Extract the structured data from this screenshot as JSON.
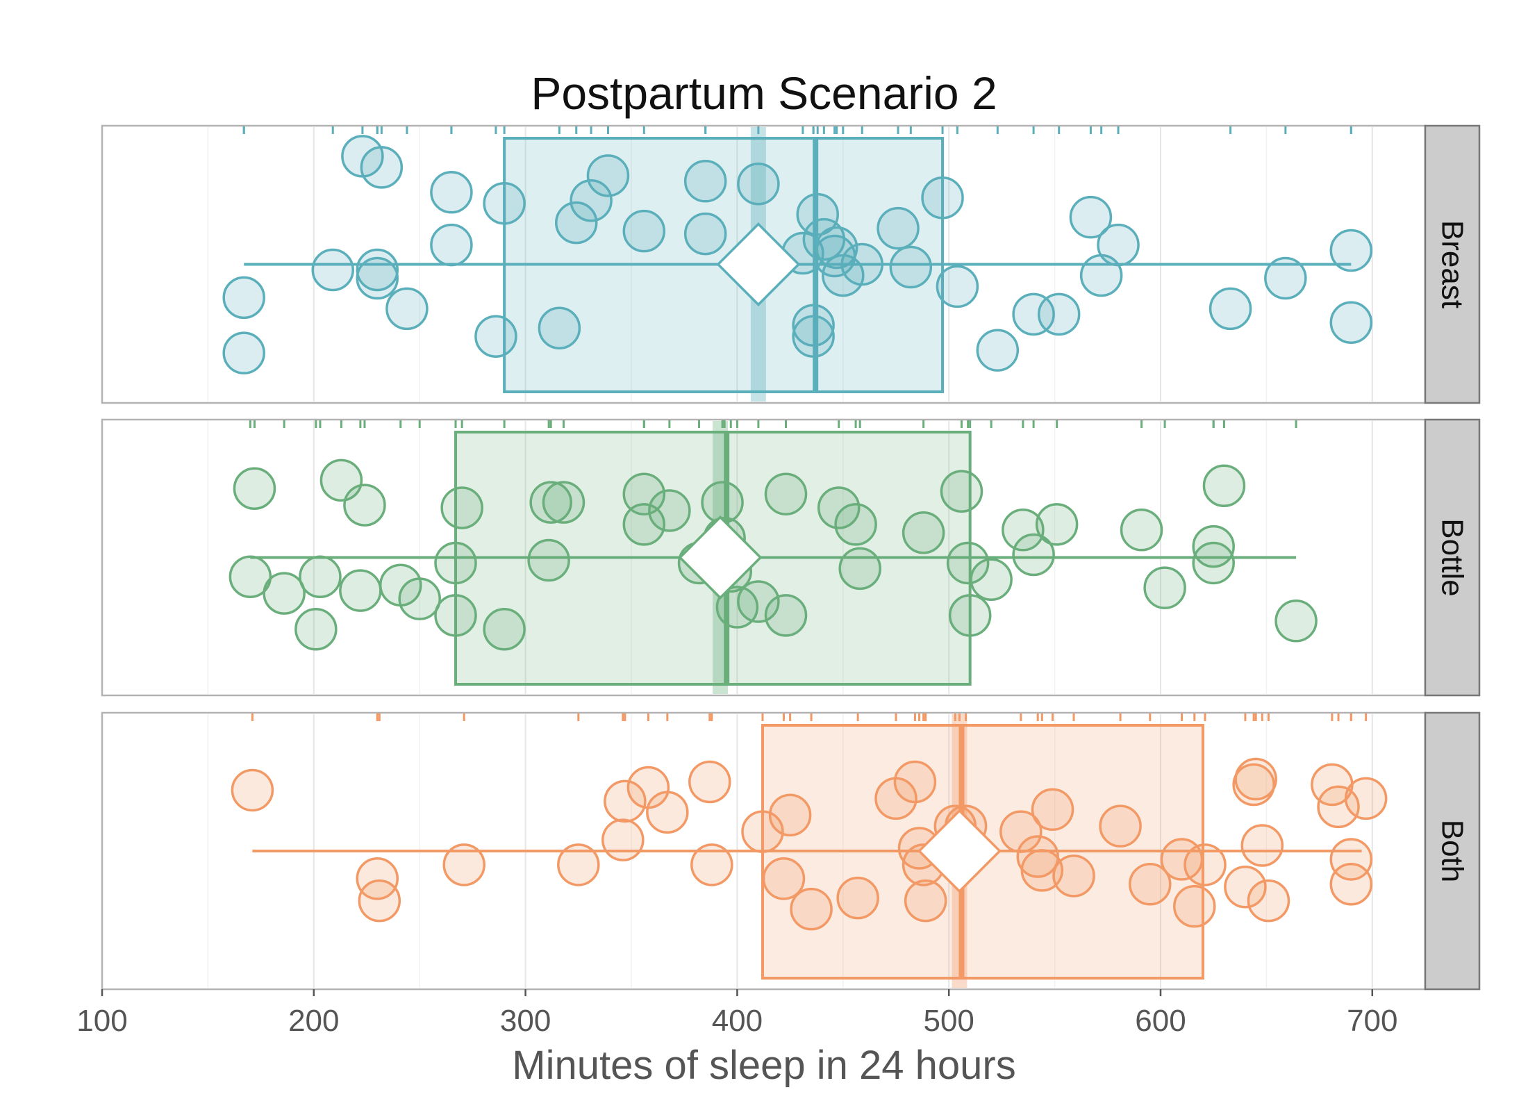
{
  "chart_data": {
    "type": "scatter",
    "title": "Postpartum Scenario 2",
    "xlabel": "Minutes of sleep in 24 hours",
    "ylabel": "",
    "xlim": [
      100,
      725
    ],
    "xticks": [
      100,
      200,
      300,
      400,
      500,
      600,
      700
    ],
    "xtick_labels": [
      "100",
      "200",
      "300",
      "400",
      "500",
      "600",
      "700"
    ],
    "grid": true,
    "layout": "three stacked facet panels with strip labels on the right",
    "elements": "jittered points, box (quartiles), median line, mean diamond, whisker line, rug ticks along top edge",
    "series": [
      {
        "name": "Breast",
        "color": "#5AAFBB",
        "box": {
          "q1": 290,
          "median": 437,
          "q3": 497,
          "whisker_low": 167,
          "whisker_high": 690,
          "mean": 410
        },
        "values": [
          167,
          167,
          209,
          223,
          230,
          230,
          232,
          244,
          265,
          265,
          286,
          290,
          316,
          324,
          331,
          339,
          356,
          385,
          385,
          410,
          431,
          436,
          436,
          438,
          441,
          446,
          447,
          450,
          459,
          476,
          482,
          497,
          504,
          523,
          540,
          552,
          567,
          572,
          580,
          633,
          659,
          690,
          690
        ],
        "jitter": [
          0.18,
          0.38,
          0.48,
          0.89,
          0.48,
          0.45,
          0.85,
          0.34,
          0.57,
          0.76,
          0.24,
          0.72,
          0.27,
          0.65,
          0.73,
          0.82,
          0.62,
          0.61,
          0.8,
          0.79,
          0.54,
          0.28,
          0.24,
          0.68,
          0.59,
          0.53,
          0.56,
          0.46,
          0.5,
          0.63,
          0.49,
          0.74,
          0.42,
          0.19,
          0.32,
          0.32,
          0.67,
          0.46,
          0.57,
          0.34,
          0.45,
          0.55,
          0.29
        ]
      },
      {
        "name": "Bottle",
        "color": "#6AAE7C",
        "box": {
          "q1": 267,
          "median": 395,
          "q3": 510,
          "whisker_low": 170,
          "whisker_high": 664,
          "mean": 392
        },
        "values": [
          170,
          172,
          186,
          201,
          203,
          213,
          222,
          224,
          241,
          250,
          267,
          267,
          270,
          290,
          311,
          312,
          318,
          356,
          356,
          368,
          382,
          393,
          394,
          397,
          400,
          410,
          423,
          423,
          448,
          456,
          458,
          488,
          506,
          509,
          510,
          520,
          535,
          540,
          551,
          591,
          602,
          625,
          625,
          630,
          664
        ],
        "jitter": [
          0.43,
          0.75,
          0.37,
          0.24,
          0.43,
          0.78,
          0.38,
          0.69,
          0.4,
          0.35,
          0.29,
          0.48,
          0.68,
          0.24,
          0.49,
          0.7,
          0.7,
          0.62,
          0.73,
          0.67,
          0.48,
          0.7,
          0.57,
          0.45,
          0.32,
          0.34,
          0.73,
          0.29,
          0.68,
          0.62,
          0.46,
          0.59,
          0.74,
          0.48,
          0.29,
          0.42,
          0.6,
          0.51,
          0.62,
          0.6,
          0.39,
          0.54,
          0.48,
          0.76,
          0.27
        ]
      },
      {
        "name": "Both",
        "color": "#F29966",
        "box": {
          "q1": 412,
          "median": 506,
          "q3": 620,
          "whisker_low": 171,
          "whisker_high": 695,
          "mean": 505
        },
        "values": [
          171,
          230,
          231,
          271,
          325,
          346,
          347,
          358,
          367,
          387,
          388,
          412,
          422,
          425,
          435,
          457,
          475,
          484,
          486,
          488,
          489,
          503,
          505,
          508,
          534,
          542,
          544,
          549,
          559,
          581,
          595,
          610,
          616,
          621,
          640,
          644,
          645,
          648,
          651,
          681,
          684,
          690,
          690,
          697
        ],
        "jitter": [
          0.72,
          0.4,
          0.32,
          0.45,
          0.45,
          0.54,
          0.68,
          0.73,
          0.64,
          0.75,
          0.45,
          0.57,
          0.4,
          0.63,
          0.29,
          0.33,
          0.69,
          0.75,
          0.51,
          0.45,
          0.32,
          0.59,
          0.54,
          0.59,
          0.57,
          0.48,
          0.43,
          0.65,
          0.41,
          0.59,
          0.38,
          0.47,
          0.3,
          0.45,
          0.37,
          0.74,
          0.76,
          0.52,
          0.32,
          0.74,
          0.66,
          0.38,
          0.47,
          0.69
        ]
      }
    ]
  }
}
